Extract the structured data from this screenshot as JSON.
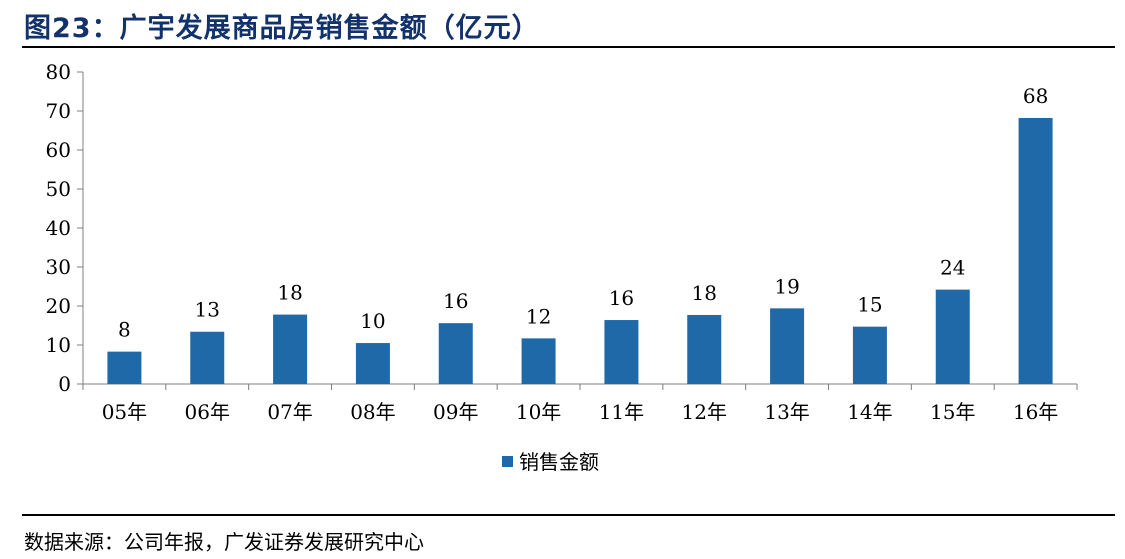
{
  "figure": {
    "title": "图23：广宇发展商品房销售金额（亿元）",
    "source": "数据来源：公司年报，广发证券发展研究中心"
  },
  "chart_data": {
    "type": "bar",
    "categories": [
      "05年",
      "06年",
      "07年",
      "08年",
      "09年",
      "10年",
      "11年",
      "12年",
      "13年",
      "14年",
      "15年",
      "16年"
    ],
    "series": [
      {
        "name": "销售金额",
        "values": [
          8.3,
          13.4,
          17.8,
          10.5,
          15.6,
          11.7,
          16.4,
          17.7,
          19.4,
          14.7,
          24.2,
          68.2
        ],
        "labels": [
          "8",
          "13",
          "18",
          "10",
          "16",
          "12",
          "16",
          "18",
          "19",
          "15",
          "24",
          "68"
        ],
        "color": "#1f69a8"
      }
    ],
    "yticks": [
      "0",
      "10",
      "20",
      "30",
      "40",
      "50",
      "60",
      "70",
      "80"
    ],
    "ylim": [
      0,
      80
    ],
    "grid": false,
    "legend_position": "bottom"
  }
}
